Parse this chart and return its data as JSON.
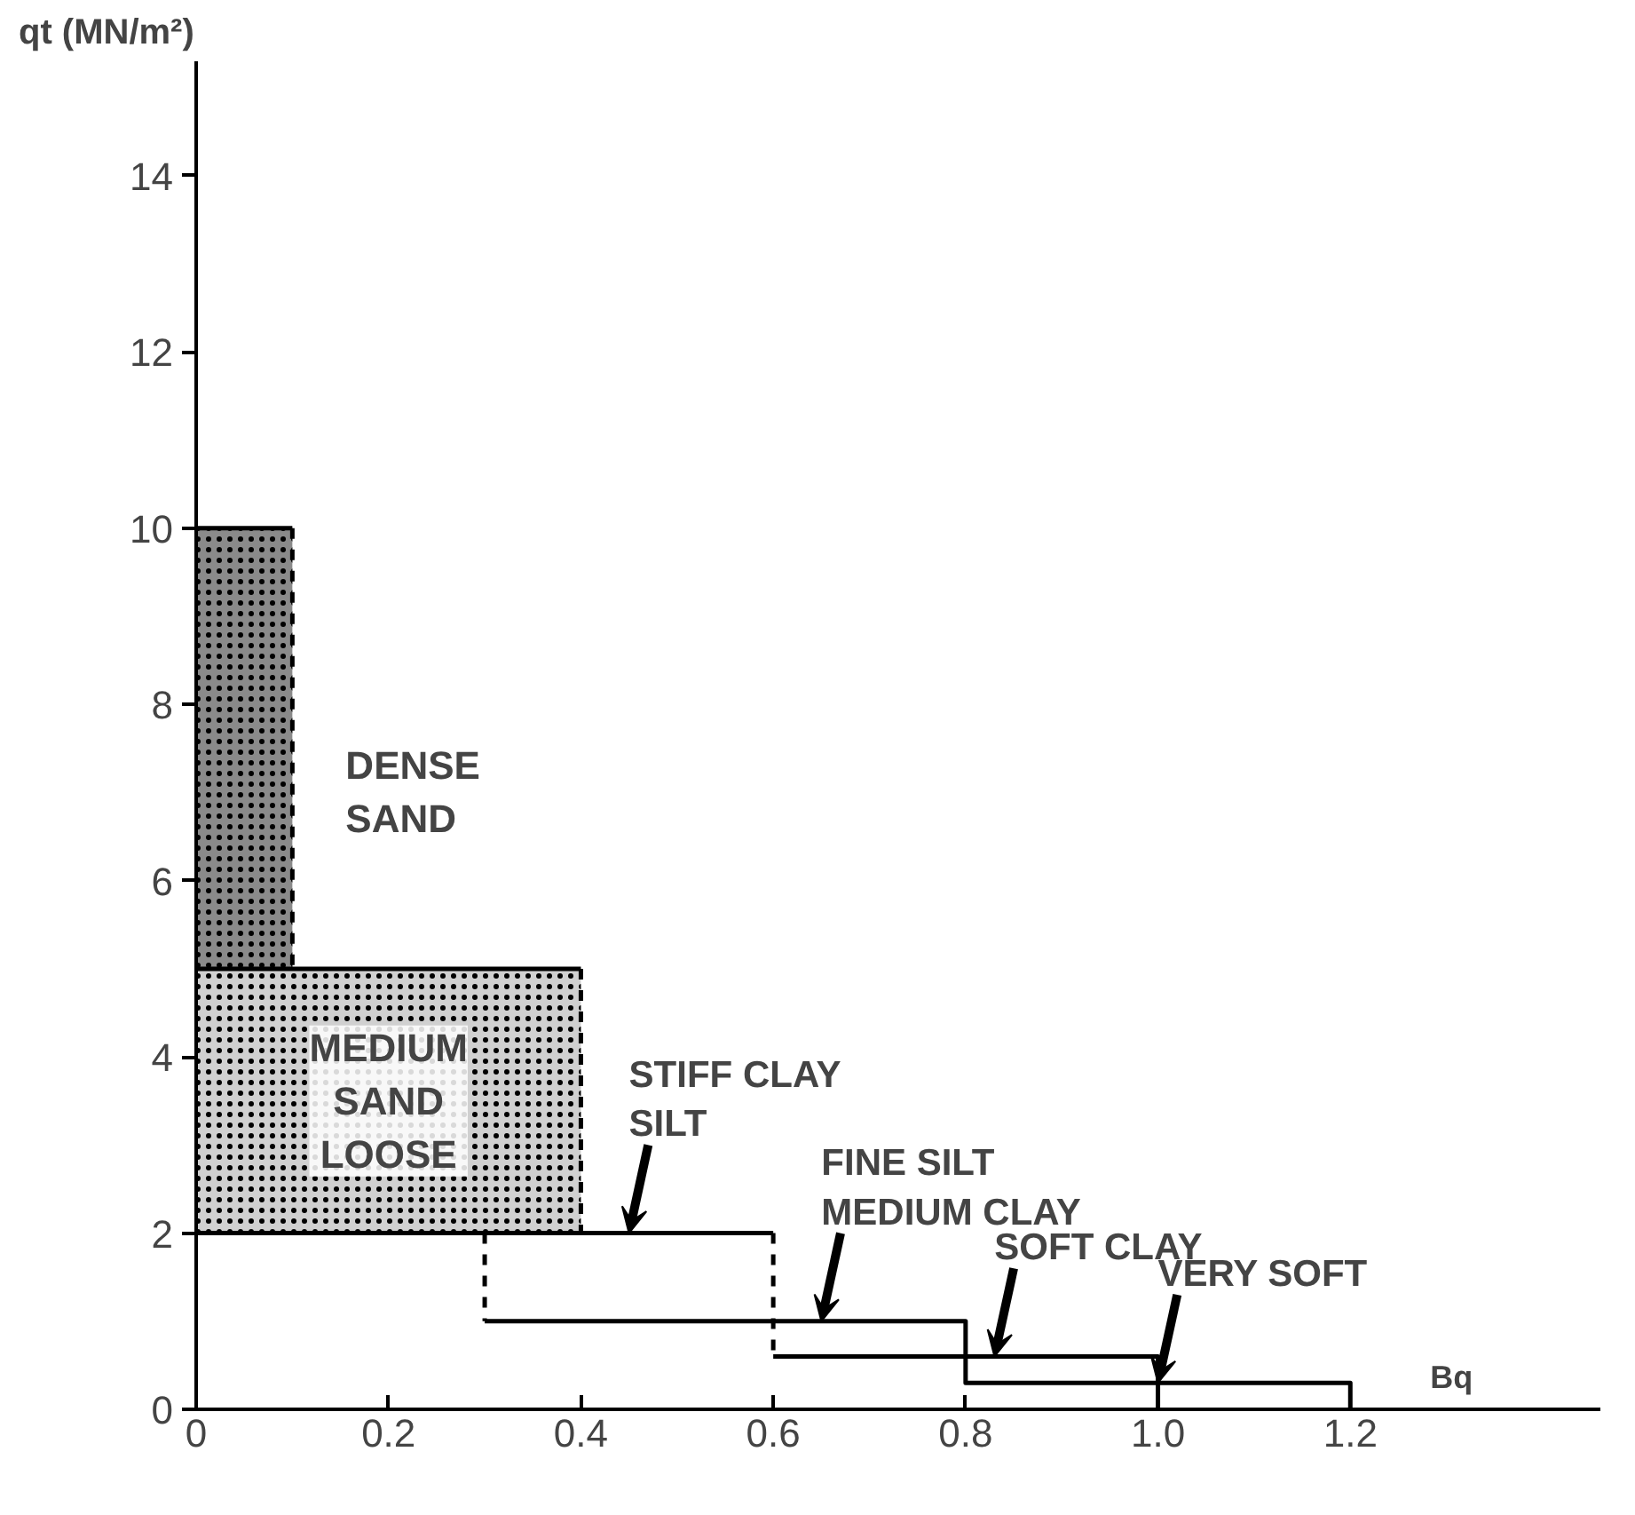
{
  "chart_data": {
    "type": "line",
    "xlabel": "Bq",
    "ylabel": "qt (MN/m²)",
    "xlim": [
      0,
      1.46
    ],
    "ylim": [
      0,
      15.3
    ],
    "xticks": [
      0,
      0.2,
      0.4,
      0.6,
      0.8,
      {
        "value": 1,
        "label": "1.0"
      },
      1.2
    ],
    "yticks": [
      0,
      2,
      4,
      6,
      8,
      10,
      12,
      14
    ],
    "grid": false,
    "series": [
      {
        "type": "area",
        "name": "DENSE\nSAND",
        "color": "#8a8a8a",
        "x": [
          0,
          0.1
        ],
        "values": [
          10,
          10
        ]
      },
      {
        "type": "area",
        "name": "MEDIUM\nSAND\nLOOSE",
        "color": "#d0d0d0",
        "x": [
          0,
          0.4
        ],
        "values": [
          5,
          5
        ]
      },
      {
        "type": "area",
        "color": "#ffffff",
        "x": [
          0,
          0.6
        ],
        "values": [
          2,
          2
        ]
      },
      {
        "color": "#000000",
        "line_style": "dashed",
        "x": [
          0.1,
          0.1
        ],
        "values": [
          10,
          5
        ]
      },
      {
        "color": "#000000",
        "line_style": "dashed",
        "x": [
          0.4,
          0.4
        ],
        "values": [
          5,
          2
        ]
      },
      {
        "color": "#000000",
        "line_style": "dashed",
        "x": [
          0.3,
          0.3
        ],
        "values": [
          2,
          1
        ]
      },
      {
        "color": "#000000",
        "line_style": "solid",
        "x": [
          0.3,
          0.8,
          0.8,
          1.2,
          1.2
        ],
        "values": [
          1,
          1,
          0.3,
          0.3,
          0
        ]
      },
      {
        "color": "#000000",
        "line_style": "dashed",
        "x": [
          0.6,
          0.6
        ],
        "values": [
          2,
          0.6
        ]
      },
      {
        "color": "#000000",
        "line_style": "solid",
        "x": [
          0.6,
          1.0,
          1.0
        ],
        "values": [
          0.6,
          0.6,
          0
        ]
      }
    ],
    "annotations": [
      {
        "text": "STIFF CLAY\nSILT",
        "x": 0.45,
        "y": 2
      },
      {
        "text": "FINE SILT\nMEDIUM CLAY",
        "x": 0.65,
        "y": 1
      },
      {
        "text": "SOFT CLAY",
        "x": 0.83,
        "y": 0.6
      },
      {
        "text": "VERY SOFT",
        "x": 1.0,
        "y": 0.3
      }
    ]
  }
}
